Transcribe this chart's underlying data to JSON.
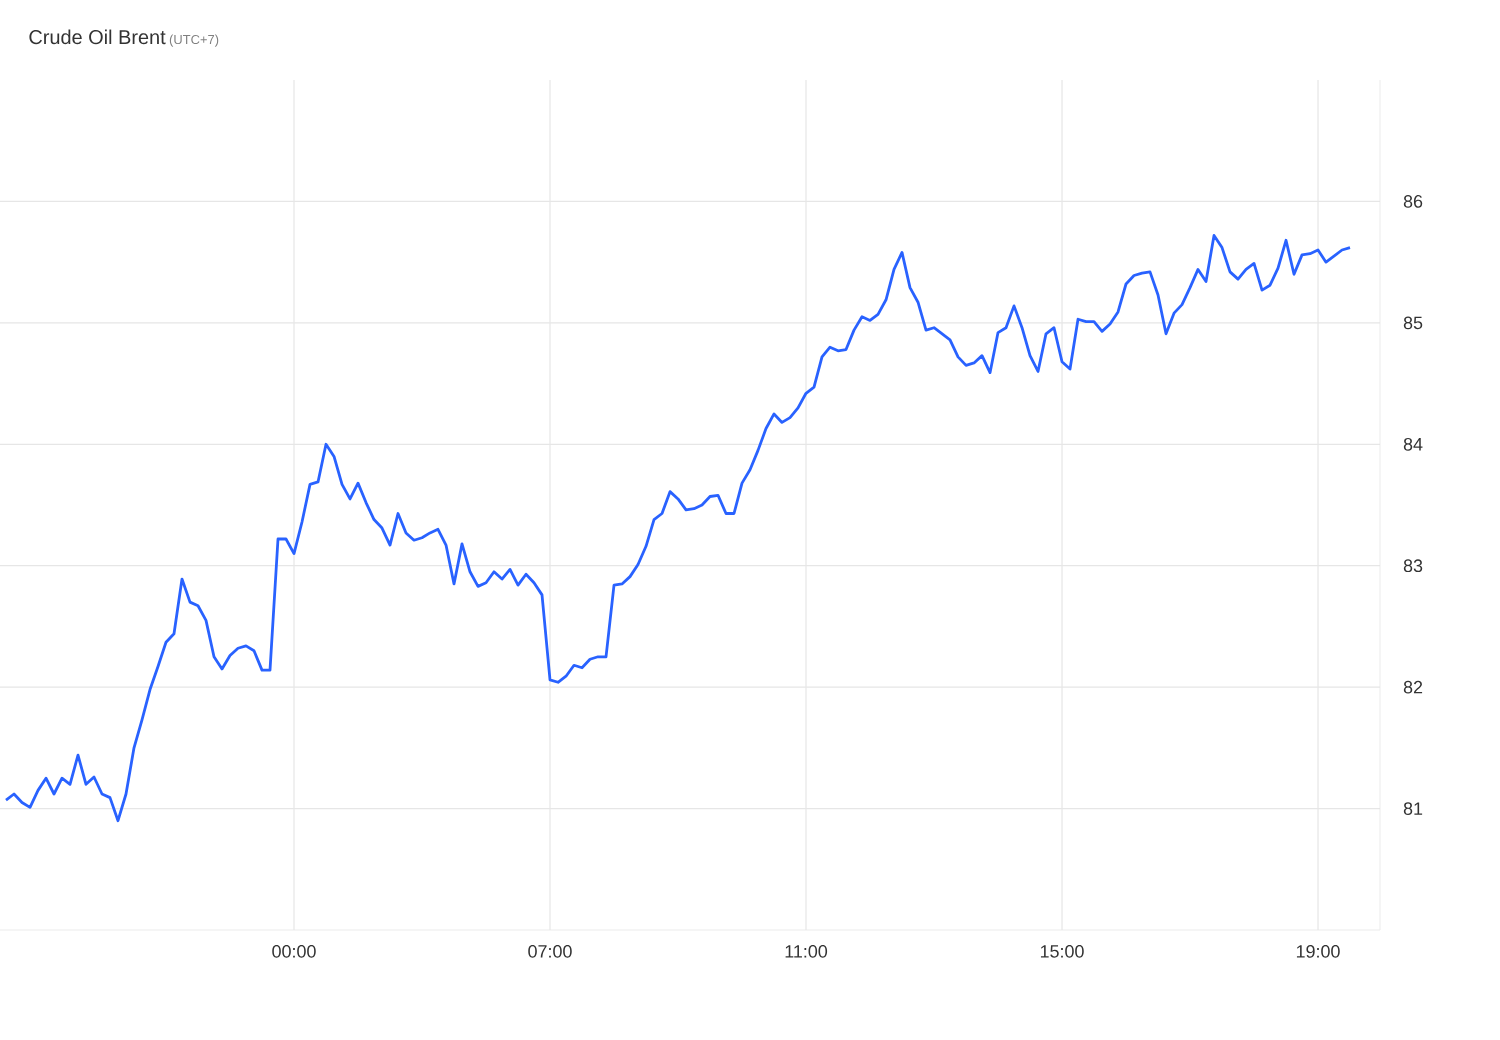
{
  "chart_data": {
    "type": "line",
    "title": "Crude Oil Brent",
    "subtitle": "(UTC+7)",
    "ylim": [
      80,
      87
    ],
    "yticks": [
      81,
      82,
      83,
      84,
      85,
      86
    ],
    "grid": true,
    "categories": [
      null,
      null,
      null,
      null,
      null,
      null,
      null,
      null,
      null,
      null,
      null,
      null,
      null,
      null,
      null,
      null,
      null,
      null,
      null,
      null,
      null,
      null,
      null,
      null,
      null,
      null,
      null,
      null,
      null,
      null,
      null,
      null,
      null,
      null,
      null,
      null,
      "00:00",
      null,
      null,
      null,
      null,
      null,
      null,
      null,
      null,
      null,
      null,
      null,
      null,
      null,
      null,
      null,
      null,
      null,
      null,
      null,
      null,
      null,
      null,
      null,
      null,
      null,
      null,
      null,
      null,
      null,
      null,
      null,
      "07:00",
      null,
      null,
      null,
      null,
      null,
      null,
      null,
      null,
      null,
      null,
      null,
      null,
      null,
      null,
      null,
      null,
      null,
      null,
      null,
      null,
      null,
      null,
      null,
      null,
      null,
      null,
      null,
      null,
      null,
      null,
      null,
      "11:00",
      null,
      null,
      null,
      null,
      null,
      null,
      null,
      null,
      null,
      null,
      null,
      null,
      null,
      null,
      null,
      null,
      null,
      null,
      null,
      null,
      null,
      null,
      null,
      null,
      null,
      null,
      null,
      null,
      null,
      null,
      null,
      "15:00",
      null,
      null,
      null,
      null,
      null,
      null,
      null,
      null,
      null,
      null,
      null,
      null,
      null,
      null,
      null,
      null,
      null,
      null,
      null,
      null,
      null,
      null,
      null,
      null,
      null,
      null,
      null,
      null,
      null,
      null,
      null,
      "19:00",
      null,
      null,
      null,
      null
    ],
    "series": [
      {
        "color": "#2962ff",
        "values": [
          81.07,
          81.12,
          81.05,
          81.01,
          81.15,
          81.25,
          81.12,
          81.25,
          81.2,
          81.44,
          81.2,
          81.26,
          81.12,
          81.09,
          80.9,
          81.12,
          81.5,
          81.73,
          81.98,
          82.17,
          82.37,
          82.44,
          82.89,
          82.7,
          82.67,
          82.55,
          82.25,
          82.15,
          82.26,
          82.32,
          82.34,
          82.3,
          82.14,
          82.14,
          83.22,
          83.22,
          83.1,
          83.36,
          83.67,
          83.69,
          84.0,
          83.9,
          83.67,
          83.55,
          83.68,
          83.52,
          83.38,
          83.31,
          83.17,
          83.43,
          83.27,
          83.21,
          83.23,
          83.27,
          83.3,
          83.17,
          82.85,
          83.18,
          82.95,
          82.83,
          82.86,
          82.95,
          82.89,
          82.97,
          82.84,
          82.93,
          82.86,
          82.76,
          82.06,
          82.04,
          82.09,
          82.18,
          82.16,
          82.23,
          82.25,
          82.25,
          82.84,
          82.85,
          82.91,
          83.01,
          83.16,
          83.38,
          83.43,
          83.61,
          83.55,
          83.46,
          83.47,
          83.5,
          83.57,
          83.58,
          83.43,
          83.43,
          83.68,
          83.79,
          83.95,
          84.13,
          84.25,
          84.18,
          84.22,
          84.3,
          84.42,
          84.47,
          84.72,
          84.8,
          84.77,
          84.78,
          84.94,
          85.05,
          85.02,
          85.07,
          85.19,
          85.44,
          85.58,
          85.29,
          85.17,
          84.94,
          84.96,
          84.91,
          84.86,
          84.72,
          84.65,
          84.67,
          84.73,
          84.59,
          84.92,
          84.96,
          85.14,
          84.96,
          84.73,
          84.6,
          84.91,
          84.96,
          84.68,
          84.62,
          85.03,
          85.01,
          85.01,
          84.93,
          84.99,
          85.09,
          85.32,
          85.39,
          85.41,
          85.42,
          85.23,
          84.91,
          85.08,
          85.15,
          85.29,
          85.44,
          85.34,
          85.72,
          85.62,
          85.42,
          85.36,
          85.44,
          85.49,
          85.27,
          85.31,
          85.45,
          85.68,
          85.4,
          85.56,
          85.57,
          85.6,
          85.5,
          85.55,
          85.6,
          85.62
        ]
      }
    ]
  }
}
